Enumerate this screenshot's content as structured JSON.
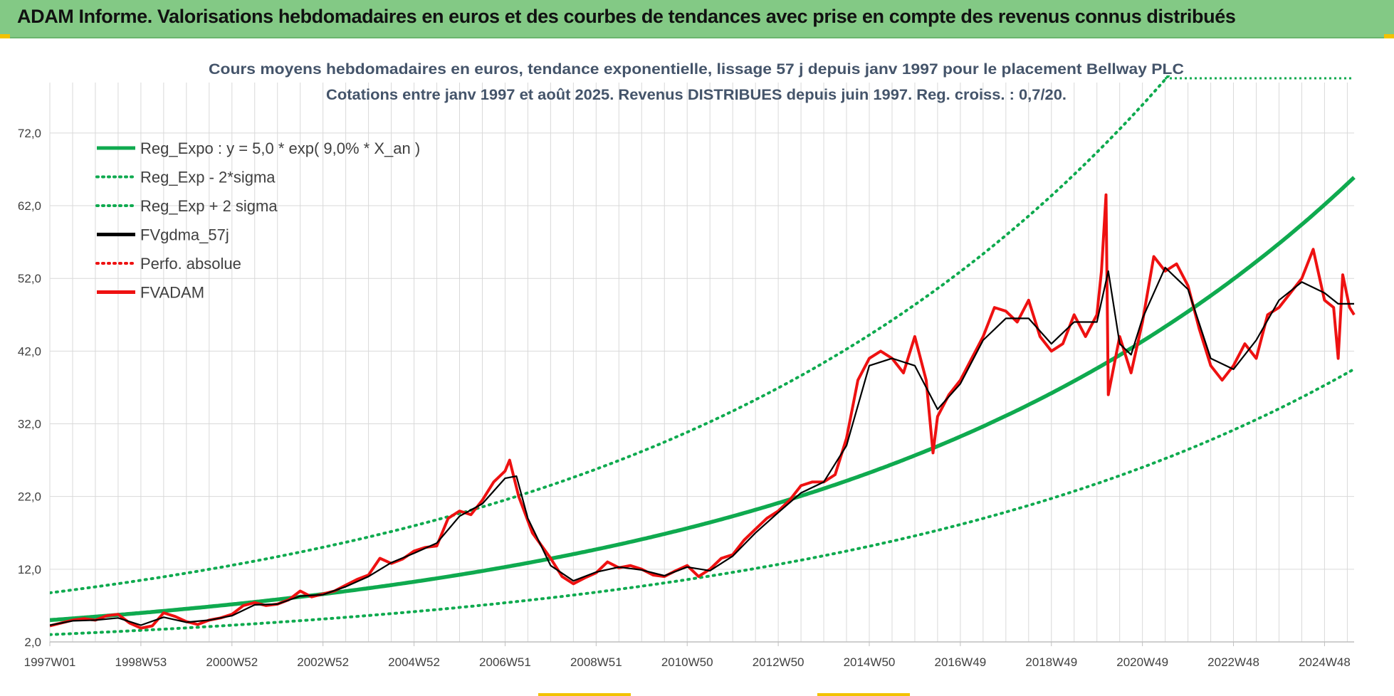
{
  "banner": {
    "title": "ADAM Informe. Valorisations hebdomadaires en euros et des courbes de tendances avec prise en compte des revenus connus distribués"
  },
  "colors": {
    "banner_bg": "#83c985",
    "trend_green": "#0faa4f",
    "price_red": "#ee1111",
    "smooth_black": "#000000",
    "grid": "#d9d9d9",
    "title_text": "#44546a"
  },
  "chart_data": {
    "type": "line",
    "title": "Cours moyens hebdomadaires en euros, tendance exponentielle, lissage 57 j depuis janv 1997 pour le placement Bellway PLC",
    "subtitle": "Cotations entre janv 1997 et août 2025. Revenus DISTRIBUES depuis juin 1997. Reg. croiss. : 0,7/20.",
    "xlabel": "",
    "ylabel": "",
    "ylim": [
      2,
      76
    ],
    "xlim": [
      1997.0,
      2025.65
    ],
    "y_ticks": [
      "2,0",
      "12,0",
      "22,0",
      "32,0",
      "42,0",
      "52,0",
      "62,0",
      "72,0"
    ],
    "y_tick_values": [
      2,
      12,
      22,
      32,
      42,
      52,
      62,
      72
    ],
    "x_ticks": [
      "1997W01",
      "1998W53",
      "2000W52",
      "2002W52",
      "2004W52",
      "2006W51",
      "2008W51",
      "2010W50",
      "2012W50",
      "2014W50",
      "2016W49",
      "2018W49",
      "2020W49",
      "2022W48",
      "2024W48"
    ],
    "x_tick_values": [
      1997.0,
      1999.0,
      2001.0,
      2003.0,
      2005.0,
      2007.0,
      2009.0,
      2011.0,
      2013.0,
      2015.0,
      2017.0,
      2019.0,
      2021.0,
      2023.0,
      2025.0
    ],
    "grid": true,
    "legend_position": "top-left",
    "trend": {
      "name": "Reg_Expo : y = 5,0 * exp( 9,0% *  X_an )",
      "a": 5.0,
      "rate": 0.09,
      "x0": 1997.0,
      "lower_factor": 0.6,
      "upper_factor": 1.75
    },
    "series": [
      {
        "name": "FVADAM",
        "x": [
          1997.0,
          1997.25,
          1997.5,
          1997.75,
          1998.0,
          1998.25,
          1998.5,
          1998.75,
          1999.0,
          1999.25,
          1999.5,
          1999.75,
          2000.0,
          2000.25,
          2000.5,
          2000.75,
          2001.0,
          2001.25,
          2001.5,
          2001.75,
          2002.0,
          2002.25,
          2002.5,
          2002.75,
          2003.0,
          2003.25,
          2003.5,
          2003.75,
          2004.0,
          2004.25,
          2004.5,
          2004.75,
          2005.0,
          2005.25,
          2005.5,
          2005.75,
          2006.0,
          2006.25,
          2006.5,
          2006.75,
          2007.0,
          2007.1,
          2007.3,
          2007.6,
          2008.0,
          2008.25,
          2008.5,
          2008.75,
          2009.0,
          2009.25,
          2009.5,
          2009.75,
          2010.0,
          2010.25,
          2010.5,
          2010.75,
          2011.0,
          2011.25,
          2011.5,
          2011.75,
          2012.0,
          2012.25,
          2012.5,
          2012.75,
          2013.0,
          2013.25,
          2013.5,
          2013.75,
          2014.0,
          2014.25,
          2014.5,
          2014.75,
          2015.0,
          2015.25,
          2015.5,
          2015.75,
          2016.0,
          2016.25,
          2016.4,
          2016.5,
          2016.75,
          2017.0,
          2017.25,
          2017.5,
          2017.75,
          2018.0,
          2018.25,
          2018.5,
          2018.75,
          2019.0,
          2019.25,
          2019.5,
          2019.75,
          2020.0,
          2020.1,
          2020.2,
          2020.25,
          2020.5,
          2020.75,
          2021.0,
          2021.25,
          2021.5,
          2021.75,
          2022.0,
          2022.25,
          2022.5,
          2022.75,
          2023.0,
          2023.25,
          2023.5,
          2023.75,
          2024.0,
          2024.25,
          2024.5,
          2024.75,
          2025.0,
          2025.2,
          2025.3,
          2025.4,
          2025.55,
          2025.65
        ],
        "values": [
          4.2,
          4.6,
          5.0,
          5.2,
          5.0,
          5.6,
          5.8,
          4.6,
          3.9,
          4.2,
          6.0,
          5.5,
          4.8,
          4.4,
          5.0,
          5.3,
          5.8,
          7.0,
          7.4,
          7.0,
          7.2,
          7.8,
          9.0,
          8.2,
          8.6,
          9.0,
          9.8,
          10.6,
          11.2,
          13.5,
          12.8,
          13.4,
          14.5,
          15.0,
          15.2,
          19.0,
          20.0,
          19.5,
          21.5,
          24.0,
          25.5,
          27.0,
          22.0,
          17.0,
          13.5,
          11.0,
          10.0,
          10.8,
          11.5,
          13.0,
          12.2,
          12.5,
          12.0,
          11.2,
          11.0,
          11.8,
          12.5,
          11.0,
          12.0,
          13.5,
          14.0,
          16.0,
          17.5,
          19.0,
          20.0,
          21.5,
          23.5,
          24.0,
          24.0,
          25.0,
          30.0,
          38.0,
          41.0,
          42.0,
          41.0,
          39.0,
          44.0,
          38.0,
          28.0,
          33.0,
          36.0,
          38.0,
          41.0,
          44.0,
          48.0,
          47.5,
          46.0,
          49.0,
          44.0,
          42.0,
          43.0,
          47.0,
          44.0,
          47.0,
          53.0,
          63.5,
          36.0,
          44.0,
          39.0,
          46.0,
          55.0,
          53.0,
          54.0,
          51.0,
          45.0,
          40.0,
          38.0,
          40.0,
          43.0,
          41.0,
          47.0,
          48.0,
          50.0,
          52.0,
          56.0,
          49.0,
          48.0,
          41.0,
          52.5,
          48.0,
          47.0
        ]
      },
      {
        "name": "FVgdma_57j",
        "x": [
          1997.0,
          1997.5,
          1998.0,
          1998.5,
          1999.0,
          1999.5,
          2000.0,
          2000.5,
          2001.0,
          2001.5,
          2002.0,
          2002.5,
          2003.0,
          2003.5,
          2004.0,
          2004.5,
          2005.0,
          2005.5,
          2006.0,
          2006.5,
          2007.0,
          2007.25,
          2007.5,
          2008.0,
          2008.5,
          2009.0,
          2009.5,
          2010.0,
          2010.5,
          2011.0,
          2011.5,
          2012.0,
          2012.5,
          2013.0,
          2013.5,
          2014.0,
          2014.5,
          2015.0,
          2015.5,
          2016.0,
          2016.5,
          2017.0,
          2017.5,
          2018.0,
          2018.5,
          2019.0,
          2019.5,
          2020.0,
          2020.25,
          2020.5,
          2020.75,
          2021.0,
          2021.5,
          2022.0,
          2022.5,
          2023.0,
          2023.5,
          2024.0,
          2024.5,
          2025.0,
          2025.3,
          2025.65
        ],
        "values": [
          4.3,
          4.9,
          5.0,
          5.3,
          4.3,
          5.4,
          4.7,
          5.0,
          5.6,
          7.1,
          7.2,
          8.3,
          8.5,
          9.6,
          11.0,
          12.9,
          14.2,
          15.6,
          19.3,
          21.0,
          24.5,
          24.8,
          19.0,
          12.5,
          10.4,
          11.6,
          12.3,
          11.9,
          11.1,
          12.3,
          11.8,
          13.8,
          17.0,
          19.8,
          22.5,
          24.0,
          29.0,
          40.0,
          41.0,
          40.0,
          34.0,
          37.5,
          43.5,
          46.5,
          46.5,
          43.0,
          46.0,
          46.0,
          53.0,
          43.0,
          41.5,
          46.5,
          53.5,
          50.5,
          41.0,
          39.5,
          43.5,
          49.0,
          51.5,
          50.0,
          48.5,
          48.5
        ]
      }
    ],
    "legend": [
      {
        "label": "Reg_Expo : y = 5,0 * exp( 9,0% *  X_an )",
        "style": "solid",
        "color": "#0faa4f"
      },
      {
        "label": "Reg_Exp - 2*sigma",
        "style": "dotted",
        "color": "#0faa4f"
      },
      {
        "label": "Reg_Exp + 2 sigma",
        "style": "dotted",
        "color": "#0faa4f"
      },
      {
        "label": "FVgdma_57j",
        "style": "solid",
        "color": "#000000"
      },
      {
        "label": "Perfo. absolue",
        "style": "dotted",
        "color": "#ee1111"
      },
      {
        "label": "FVADAM",
        "style": "solid",
        "color": "#ee1111"
      }
    ]
  }
}
